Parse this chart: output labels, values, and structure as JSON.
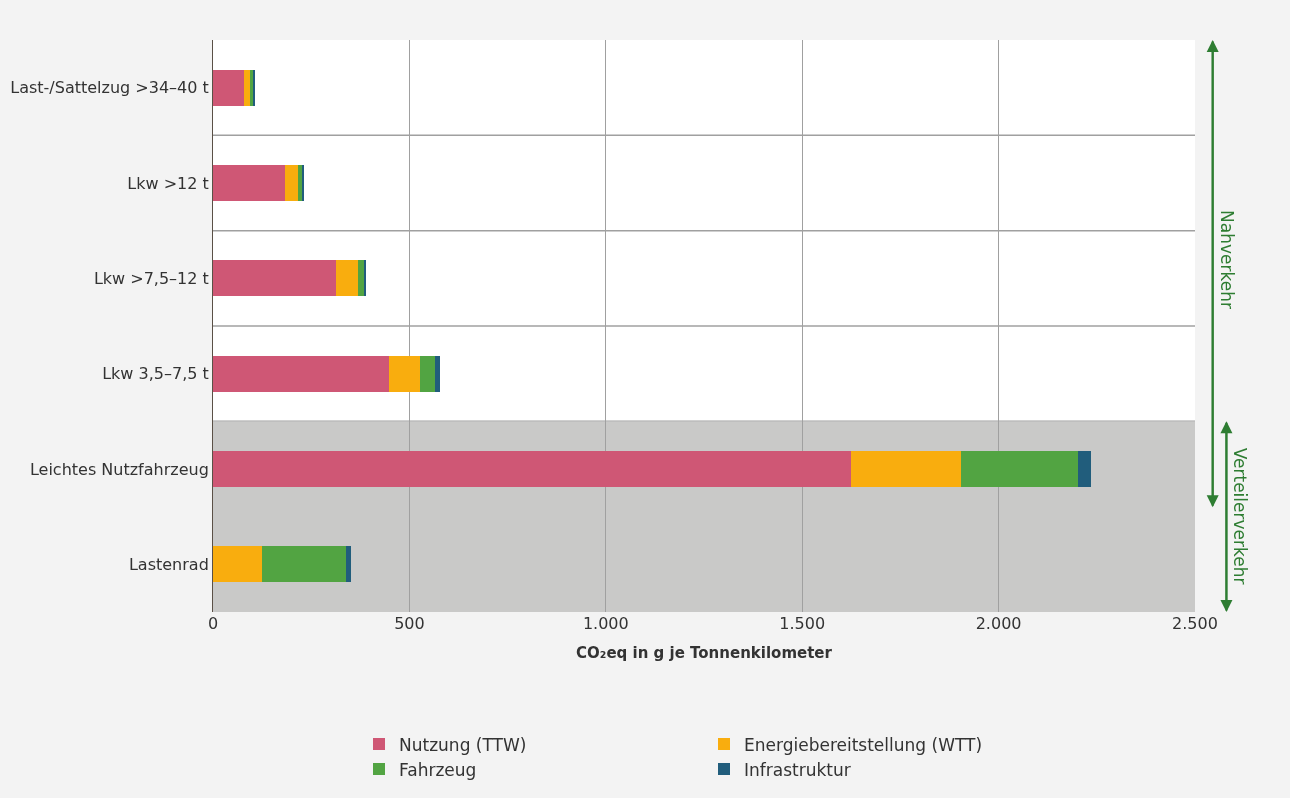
{
  "chart_data": {
    "type": "bar",
    "orientation": "horizontal",
    "stacked": true,
    "categories": [
      "Last-/Sattelzug >34–40 t",
      "Lkw >12 t",
      "Lkw >7,5–12 t",
      "Lkw 3,5–7,5 t",
      "Leichtes Nutzfahrzeug",
      "Lastenrad"
    ],
    "series": [
      {
        "name": "Nutzung (TTW)",
        "color": "#cf5775",
        "values": [
          80,
          184,
          313,
          449,
          1625,
          0
        ]
      },
      {
        "name": "Energiebereitstellung (WTT)",
        "color": "#f9ad0e",
        "values": [
          14,
          32,
          55,
          79,
          278,
          126
        ]
      },
      {
        "name": "Fahrzeug",
        "color": "#52a442",
        "values": [
          8,
          12,
          16,
          38,
          300,
          212
        ]
      },
      {
        "name": "Infrastruktur",
        "color": "#215d7c",
        "values": [
          3,
          4,
          6,
          11,
          31,
          13
        ]
      }
    ],
    "xlabel": "CO₂eq in g je Tonnenkilometer",
    "xlim": [
      0,
      2500
    ],
    "xticks": [
      0,
      500,
      {
        "value": 1000,
        "label": "1.000"
      },
      {
        "value": 1500,
        "label": "1.500"
      },
      {
        "value": 2000,
        "label": "2.000"
      },
      {
        "value": 2500,
        "label": "2.500"
      }
    ],
    "grid": true,
    "legend": "bottom",
    "bands": [
      {
        "axis": "y",
        "from": "Leichtes Nutzfahrzeug",
        "to": "Lastenrad",
        "color": "#c9c9c8"
      }
    ],
    "annotations": [
      "Nahverkehr",
      "Verteilerverkehr"
    ]
  }
}
